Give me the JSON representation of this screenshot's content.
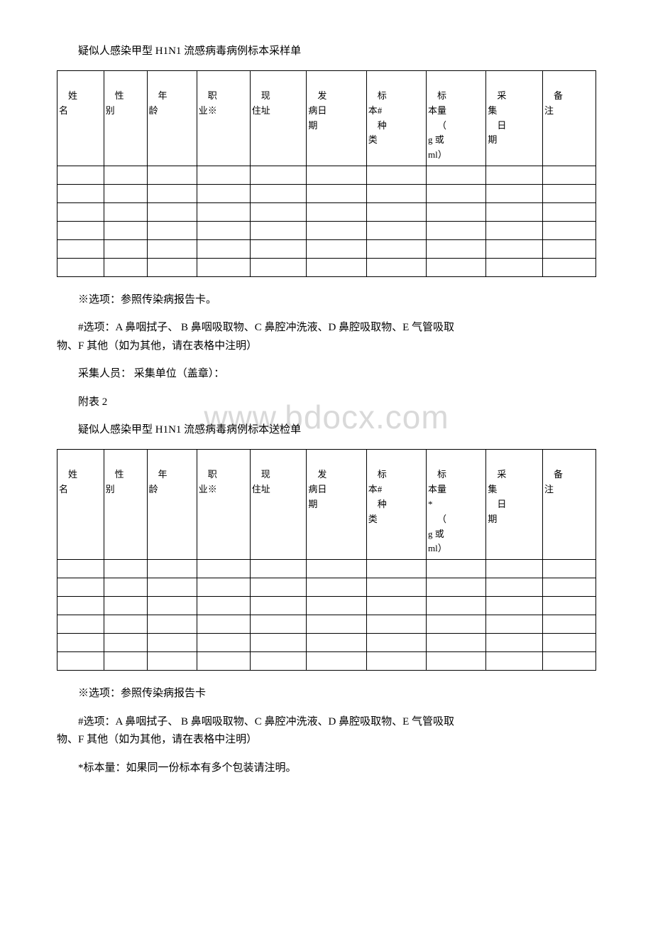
{
  "section1": {
    "title": "疑似人感染甲型 H1N1 流感病毒病例标本采样单",
    "table": {
      "headers": [
        "姓名",
        "性别",
        "年龄",
        "职业※",
        "现住址",
        "发病日期",
        "标本#\n种类",
        "标本量\n（g 或ml）",
        "采集\n日期",
        "备注"
      ],
      "empty_rows": 6
    },
    "note1": "※选项：参照传染病报告卡。",
    "note2_line1": "#选项：A 鼻咽拭子、 B 鼻咽吸取物、C 鼻腔冲洗液、D 鼻腔吸取物、E 气管吸取",
    "note2_line2": "物、F 其他（如为其他，请在表格中注明）",
    "note3": "采集人员：  采集单位（盖章）："
  },
  "appendix_label": "附表 2",
  "section2": {
    "title": "疑似人感染甲型 H1N1 流感病毒病例标本送检单",
    "table": {
      "headers": [
        "姓名",
        "性别",
        "年龄",
        "职业※",
        "现住址",
        "发病日期",
        "标本#\n种类",
        "标本量*\n（g 或ml）",
        "采集\n日期",
        "备注"
      ],
      "empty_rows": 6
    },
    "note1": "※选项：参照传染病报告卡",
    "note2_line1": "#选项：A 鼻咽拭子、 B 鼻咽吸取物、C 鼻腔冲洗液、D 鼻腔吸取物、E 气管吸取",
    "note2_line2": "物、F 其他（如为其他，请在表格中注明）",
    "note3": "*标本量：如果同一份标本有多个包装请注明。"
  },
  "watermark": "www.bdocx.com",
  "headers_split": {
    "h0": {
      "a": "姓",
      "b": "名"
    },
    "h1": {
      "a": "性",
      "b": "别"
    },
    "h2": {
      "a": "年",
      "b": "龄"
    },
    "h3": {
      "a": "职",
      "b": "业※"
    },
    "h4": {
      "a": "现",
      "b": "住址"
    },
    "h5": {
      "a": "发",
      "b": "病日",
      "c": "期"
    },
    "h6": {
      "a": "标",
      "b": "本#",
      "c": "种",
      "d": "类"
    },
    "h7_1": {
      "a": "标",
      "b": "本量",
      "c": "（",
      "d": "g 或",
      "e": "ml）"
    },
    "h7_2": {
      "a": "标",
      "b": "本量",
      "c": "*",
      "d": "（",
      "e": "g 或",
      "f": "ml）"
    },
    "h8": {
      "a": "采",
      "b": "集",
      "c": "日",
      "d": "期"
    },
    "h9": {
      "a": "备",
      "b": "注"
    }
  }
}
